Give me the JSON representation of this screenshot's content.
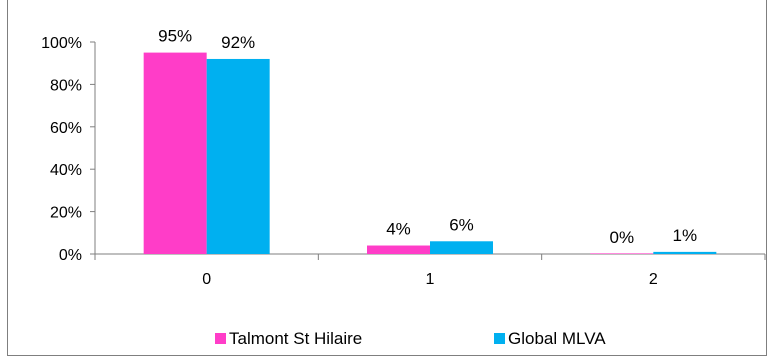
{
  "chart_data": {
    "type": "bar",
    "categories": [
      "0",
      "1",
      "2"
    ],
    "series": [
      {
        "name": "Talmont St Hilaire",
        "values": [
          95,
          4,
          0
        ],
        "color": "#ff3dc8"
      },
      {
        "name": "Global MLVA",
        "values": [
          92,
          6,
          1
        ],
        "color": "#00b0f0"
      }
    ],
    "data_labels": [
      [
        "95%",
        "4%",
        "0%"
      ],
      [
        "92%",
        "6%",
        "1%"
      ]
    ],
    "y_ticks": [
      {
        "value": 0,
        "label": "0%"
      },
      {
        "value": 20,
        "label": "20%"
      },
      {
        "value": 40,
        "label": "40%"
      },
      {
        "value": 60,
        "label": "60%"
      },
      {
        "value": 80,
        "label": "80%"
      },
      {
        "value": 100,
        "label": "100%"
      }
    ],
    "ylim": [
      0,
      100
    ],
    "grid": false,
    "legend_position": "bottom",
    "title": "",
    "xlabel": "",
    "ylabel": ""
  }
}
